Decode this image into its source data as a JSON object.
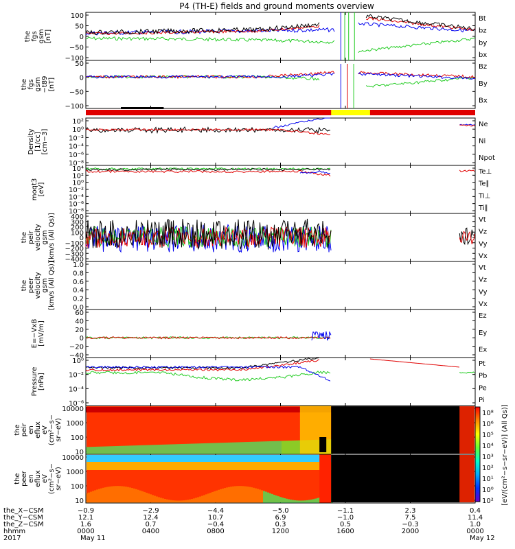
{
  "title": "P4 (TH-E) fields and ground moments overview",
  "colors": {
    "black": "#000000",
    "red": "#e00000",
    "green": "#22cc22",
    "blue": "#0000ee",
    "yellow": "#ffff00"
  },
  "chart_data": [
    {
      "type": "line",
      "ylabel": [
        "the",
        "fgs",
        "gsm",
        "[nT]"
      ],
      "ylim": [
        -100,
        100
      ],
      "yticks": [
        "100",
        "50",
        "0",
        "−50",
        "−100"
      ],
      "series": [
        {
          "name": "Bt",
          "color": "black"
        },
        {
          "name": "bz",
          "color": "red"
        },
        {
          "name": "by",
          "color": "green"
        },
        {
          "name": "bx",
          "color": "blue"
        }
      ]
    },
    {
      "type": "line",
      "ylabel": [
        "the",
        "fgs",
        "gsm",
        "−t89",
        "[nT]"
      ],
      "ylim": [
        -120,
        60
      ],
      "yticks": [
        "50",
        "0",
        "−50",
        "−100"
      ],
      "series": [
        {
          "name": "Bz",
          "color": "red"
        },
        {
          "name": "By",
          "color": "green"
        },
        {
          "name": "Bx",
          "color": "blue"
        }
      ]
    },
    {
      "type": "line",
      "ylabel": [
        "Density",
        "[1/cc]",
        "[cm−3]"
      ],
      "log": true,
      "yticks": [
        "10²",
        "10⁰",
        "10⁻²",
        "10⁻⁴",
        "10⁻⁶",
        "10⁻⁸"
      ],
      "series": [
        {
          "name": "Ne",
          "color": "red"
        },
        {
          "name": "Ni",
          "color": "black"
        },
        {
          "name": "Npot",
          "color": "blue"
        }
      ]
    },
    {
      "type": "line",
      "ylabel": [
        "moqt3",
        "[eV]"
      ],
      "log": true,
      "yticks": [
        "10⁴",
        "10²",
        "10⁰",
        "10⁻²",
        "10⁻⁴",
        "10⁻⁶",
        "10⁻⁸"
      ],
      "series": [
        {
          "name": "Te⊥",
          "color": "red"
        },
        {
          "name": "Te∥",
          "color": "black"
        },
        {
          "name": "Ti⊥",
          "color": "red"
        },
        {
          "name": "Ti∥",
          "color": "green"
        }
      ]
    },
    {
      "type": "line",
      "ylabel": [
        "the",
        "peir",
        "velocity",
        "gsm",
        "[km/s (All Qs)]"
      ],
      "ylim": [
        -400,
        400
      ],
      "yticks": [
        "400",
        "300",
        "200",
        "100",
        "0",
        "−100",
        "−200",
        "−300",
        "−400"
      ],
      "series": [
        {
          "name": "Vt",
          "color": "black"
        },
        {
          "name": "Vz",
          "color": "red"
        },
        {
          "name": "Vy",
          "color": "green"
        },
        {
          "name": "Vx",
          "color": "blue"
        }
      ]
    },
    {
      "type": "line",
      "ylabel": [
        "the",
        "peer",
        "velocity",
        "gsm",
        "[km/s (All Qs)]"
      ],
      "ylim": [
        0,
        1
      ],
      "yticks": [
        "1.0",
        "0.8",
        "0.6",
        "0.4",
        "0.2",
        "0.0"
      ],
      "series": [
        {
          "name": "Vt",
          "color": "black"
        },
        {
          "name": "Vz",
          "color": "red"
        },
        {
          "name": "Vy",
          "color": "green"
        },
        {
          "name": "Vx",
          "color": "blue"
        }
      ]
    },
    {
      "type": "line",
      "ylabel": [
        "E=−VxB",
        "[mV/m]"
      ],
      "ylim": [
        -40,
        60
      ],
      "yticks": [
        "60",
        "40",
        "20",
        "0",
        "−20",
        "−40"
      ],
      "series": [
        {
          "name": "Ez",
          "color": "red"
        },
        {
          "name": "Ey",
          "color": "green"
        },
        {
          "name": "Ex",
          "color": "blue"
        }
      ]
    },
    {
      "type": "line",
      "ylabel": [
        "Pressure",
        "[nPa]"
      ],
      "log": true,
      "yticks": [
        "10⁰",
        "10⁻²",
        "10⁻⁴",
        "10⁻⁶"
      ],
      "series": [
        {
          "name": "Pt",
          "color": "black"
        },
        {
          "name": "Pb",
          "color": "red"
        },
        {
          "name": "Pe",
          "color": "green"
        },
        {
          "name": "Pi",
          "color": "blue"
        }
      ]
    },
    {
      "type": "heatmap",
      "ylabel": [
        "the",
        "peir",
        "en",
        "eflux",
        "eV",
        "(cm²−s−",
        "sr−eV)"
      ],
      "yticks": [
        "10000",
        "1000",
        "100",
        "10"
      ]
    },
    {
      "type": "heatmap",
      "ylabel": [
        "the",
        "peer",
        "en",
        "eflux",
        "eV",
        "(cm²−s−",
        "sr−eV)"
      ],
      "yticks": [
        "10000",
        "1000",
        "100",
        "10"
      ]
    }
  ],
  "colorbar": {
    "ticks": [
      "10⁸",
      "10⁶",
      "10⁵",
      "10⁴",
      "10³",
      "10²",
      "10¹",
      "10⁰",
      "10²"
    ],
    "label": "[eV/(cm²−s−sr−eV)] (All Qs)]"
  },
  "x_axis": {
    "row_labels": [
      "the_X−CSM",
      "the_Y−CSM",
      "the_Z−CSM",
      "hhmm",
      "2017"
    ],
    "columns": [
      {
        "x": "−0.9",
        "y": "12.1",
        "z": "1.6",
        "hhmm": "0000",
        "date": "May 11"
      },
      {
        "x": "−2.9",
        "y": "12.4",
        "z": "0.7",
        "hhmm": "0400",
        "date": ""
      },
      {
        "x": "−4.4",
        "y": "10.7",
        "z": "−0.4",
        "hhmm": "0800",
        "date": ""
      },
      {
        "x": "−5.0",
        "y": "6.9",
        "z": "0.3",
        "hhmm": "1200",
        "date": ""
      },
      {
        "x": "−1.1",
        "y": "−1.0",
        "z": "0.5",
        "hhmm": "1600",
        "date": ""
      },
      {
        "x": "2.3",
        "y": "7.5",
        "z": "−0.3",
        "hhmm": "2000",
        "date": ""
      },
      {
        "x": "0.4",
        "y": "11.4",
        "z": "1.0",
        "hhmm": "0000",
        "date": "May 12"
      }
    ]
  }
}
